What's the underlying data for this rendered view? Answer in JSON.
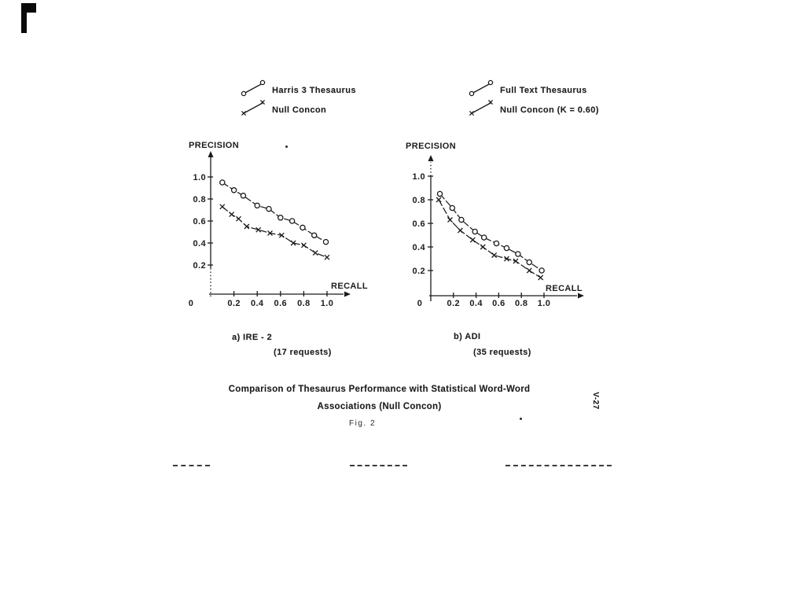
{
  "page": {
    "side_page_number": "V-27"
  },
  "figure_caption": {
    "line1": "Comparison of Thesaurus Performance with Statistical Word-Word",
    "line2": "Associations (Null Concon)",
    "fig_label": "Fig. 2"
  },
  "chart_data": [
    {
      "type": "line",
      "title": "a) IRE - 2",
      "subtitle": "(17 requests)",
      "xlabel": "RECALL",
      "ylabel": "PRECISION",
      "origin_label": "0",
      "x_ticks": [
        0.2,
        0.4,
        0.6,
        0.8,
        1.0
      ],
      "y_ticks": [
        0.2,
        0.4,
        0.6,
        0.8,
        1.0
      ],
      "xlim": [
        0,
        1.1
      ],
      "ylim": [
        0,
        1.1
      ],
      "grid": false,
      "legend_position": "above",
      "series": [
        {
          "name": "Harris 3 Thesaurus",
          "marker": "o",
          "points": [
            [
              0.1,
              0.95
            ],
            [
              0.2,
              0.88
            ],
            [
              0.28,
              0.83
            ],
            [
              0.4,
              0.74
            ],
            [
              0.5,
              0.71
            ],
            [
              0.6,
              0.63
            ],
            [
              0.7,
              0.6
            ],
            [
              0.79,
              0.54
            ],
            [
              0.89,
              0.47
            ],
            [
              0.99,
              0.41
            ]
          ]
        },
        {
          "name": "Null Concon",
          "marker": "x",
          "points": [
            [
              0.1,
              0.73
            ],
            [
              0.18,
              0.66
            ],
            [
              0.24,
              0.62
            ],
            [
              0.31,
              0.55
            ],
            [
              0.41,
              0.52
            ],
            [
              0.51,
              0.49
            ],
            [
              0.61,
              0.47
            ],
            [
              0.71,
              0.4
            ],
            [
              0.8,
              0.38
            ],
            [
              0.9,
              0.31
            ],
            [
              1.0,
              0.27
            ]
          ]
        }
      ]
    },
    {
      "type": "line",
      "title": "b) ADI",
      "subtitle": "(35 requests)",
      "xlabel": "RECALL",
      "ylabel": "PRECISION",
      "origin_label": "0",
      "x_ticks": [
        0.2,
        0.4,
        0.6,
        0.8,
        1.0
      ],
      "y_ticks": [
        0.2,
        0.4,
        0.6,
        0.8,
        1.0
      ],
      "xlim": [
        0,
        1.1
      ],
      "ylim": [
        0,
        1.1
      ],
      "grid": false,
      "legend_position": "above",
      "series": [
        {
          "name": "Full Text Thesaurus",
          "marker": "o",
          "points": [
            [
              0.08,
              0.85
            ],
            [
              0.19,
              0.73
            ],
            [
              0.27,
              0.63
            ],
            [
              0.39,
              0.53
            ],
            [
              0.47,
              0.48
            ],
            [
              0.58,
              0.43
            ],
            [
              0.67,
              0.39
            ],
            [
              0.77,
              0.34
            ],
            [
              0.87,
              0.27
            ],
            [
              0.98,
              0.2
            ]
          ]
        },
        {
          "name": "Null Concon (K = 0.60)",
          "marker": "x",
          "points": [
            [
              0.07,
              0.8
            ],
            [
              0.17,
              0.63
            ],
            [
              0.26,
              0.54
            ],
            [
              0.37,
              0.46
            ],
            [
              0.46,
              0.4
            ],
            [
              0.56,
              0.33
            ],
            [
              0.67,
              0.3
            ],
            [
              0.75,
              0.28
            ],
            [
              0.87,
              0.2
            ],
            [
              0.97,
              0.14
            ]
          ]
        }
      ]
    }
  ]
}
